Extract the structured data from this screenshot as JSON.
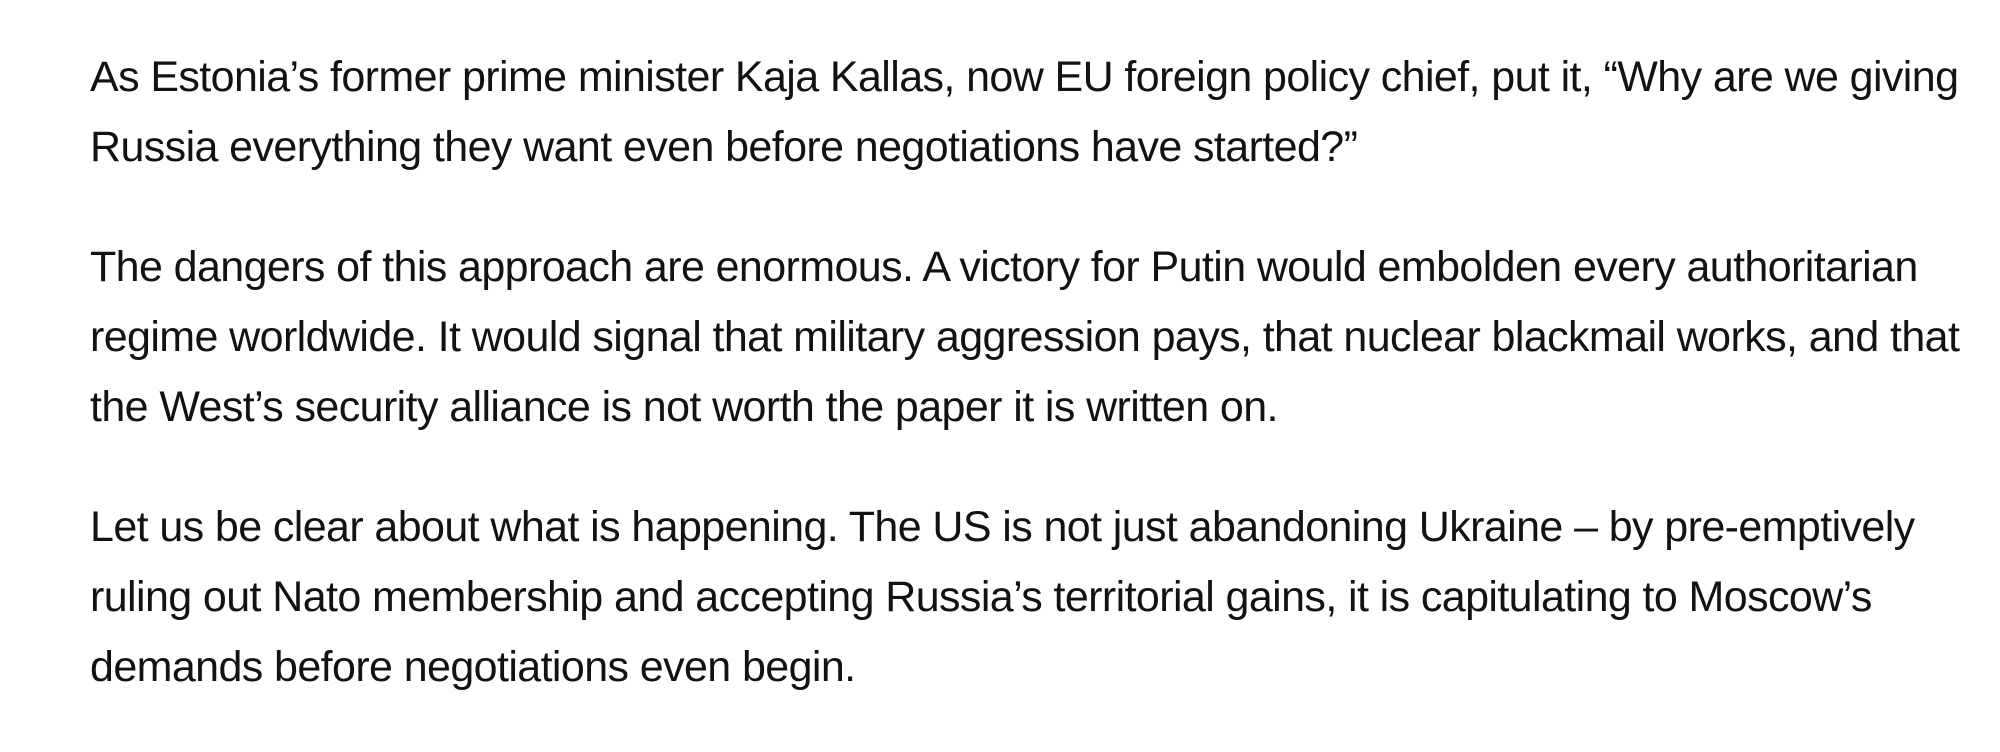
{
  "article": {
    "paragraphs": [
      {
        "lines": [
          "As Estonia’s former prime minister Kaja Kallas, now EU foreign policy chief, put it, “Why are we giving",
          "Russia everything they want even before negotiations have started?”"
        ]
      },
      {
        "lines": [
          "The dangers of this approach are enormous. A victory for Putin would embolden every authoritarian",
          "regime worldwide. It would signal that military aggression pays, that nuclear blackmail works, and that",
          "the West’s security alliance is not worth the paper it is written on."
        ]
      },
      {
        "lines": [
          "Let us be clear about what is happening. The US is not just abandoning Ukraine – by pre-emptively",
          "ruling out Nato membership and accepting Russia’s territorial gains, it is capitulating to Moscow’s",
          "demands before negotiations even begin."
        ]
      }
    ]
  }
}
